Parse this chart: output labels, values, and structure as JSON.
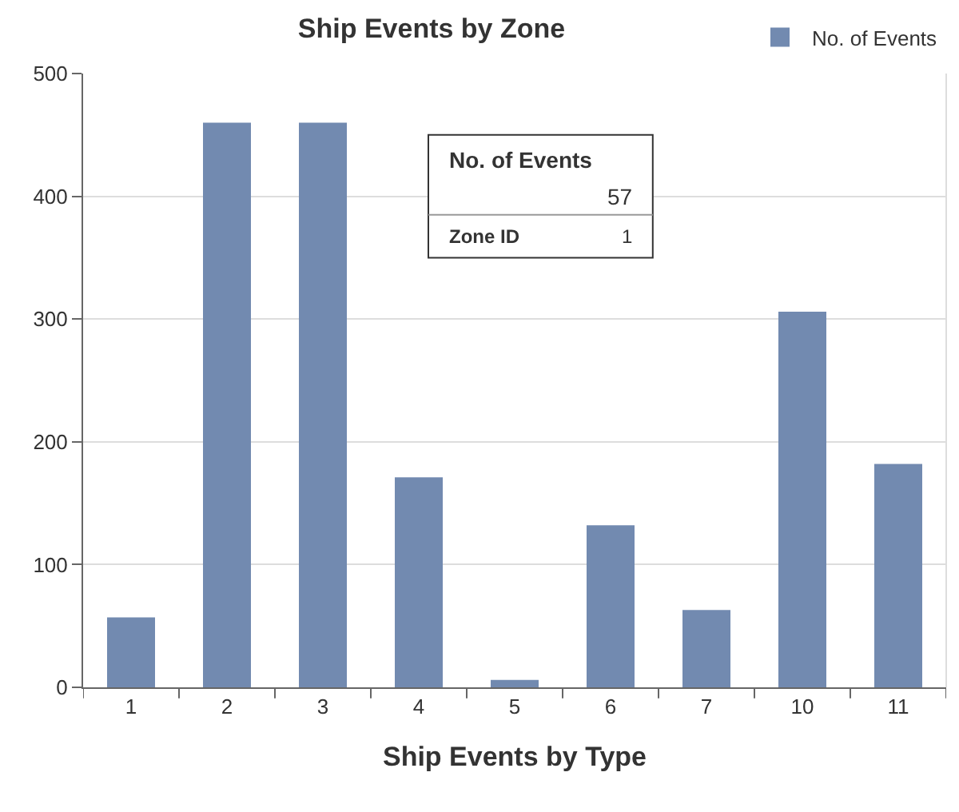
{
  "chart_data": {
    "type": "bar",
    "title": "Ship Events by Zone",
    "xlabel": "Ship Events by Type",
    "categories": [
      "1",
      "2",
      "3",
      "4",
      "5",
      "6",
      "7",
      "10",
      "11"
    ],
    "series": [
      {
        "name": "No. of Events",
        "color": "#728ab0",
        "values": [
          57,
          460,
          460,
          171,
          6,
          132,
          63,
          306,
          182
        ]
      }
    ],
    "ylim": [
      0,
      500
    ],
    "yticks": [
      0,
      100,
      200,
      300,
      400,
      500
    ],
    "grid": "y",
    "legend": "top right",
    "annotations": [
      "No. of Events",
      "57",
      "Zone ID",
      "1"
    ]
  }
}
